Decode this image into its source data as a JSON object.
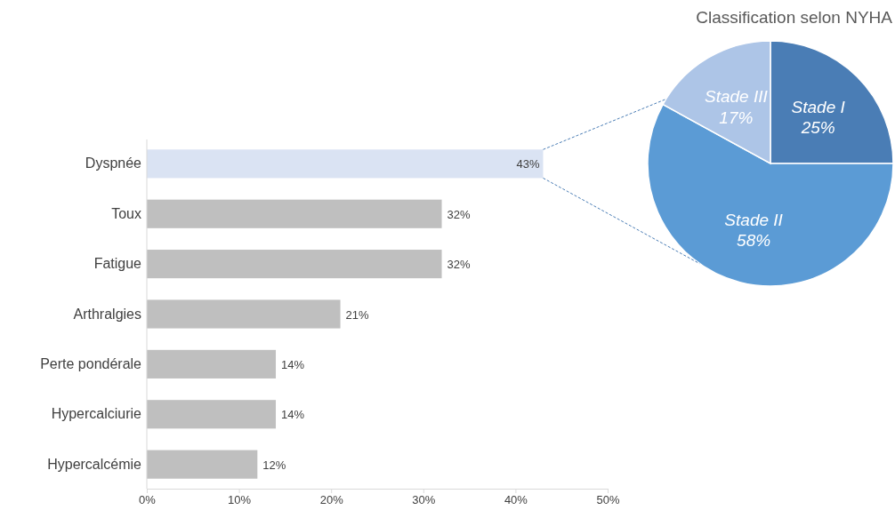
{
  "chart_data": [
    {
      "type": "bar",
      "orientation": "horizontal",
      "categories": [
        "Dyspnée",
        "Toux",
        "Fatigue",
        "Arthralgies",
        "Perte pondérale",
        "Hypercalciurie",
        "Hypercalcémie "
      ],
      "values": [
        43,
        32,
        32,
        21,
        14,
        14,
        12
      ],
      "colors": [
        "#dae3f3",
        "#bfbfbf",
        "#bfbfbf",
        "#bfbfbf",
        "#bfbfbf",
        "#bfbfbf",
        "#bfbfbf"
      ],
      "value_labels": [
        "43%",
        "32%",
        "32%",
        "21%",
        "14%",
        "14%",
        "12%"
      ],
      "xlim": [
        0,
        50
      ],
      "xticks": [
        {
          "value": 0,
          "label": "0%"
        },
        {
          "value": 10,
          "label": "10%"
        },
        {
          "value": 20,
          "label": "20%"
        },
        {
          "value": 30,
          "label": "30%"
        },
        {
          "value": 40,
          "label": "40%"
        },
        {
          "value": 50,
          "label": "50%"
        }
      ],
      "grid": false
    },
    {
      "type": "pie",
      "title": "Classification selon NYHA",
      "categories": [
        "Stade I",
        "Stade II",
        "Stade III"
      ],
      "values": [
        25,
        58,
        17
      ],
      "colors": [
        "#4a7db5",
        "#5b9bd5",
        "#adc5e7"
      ],
      "value_labels": [
        "25%",
        "58%",
        "17%"
      ]
    }
  ]
}
